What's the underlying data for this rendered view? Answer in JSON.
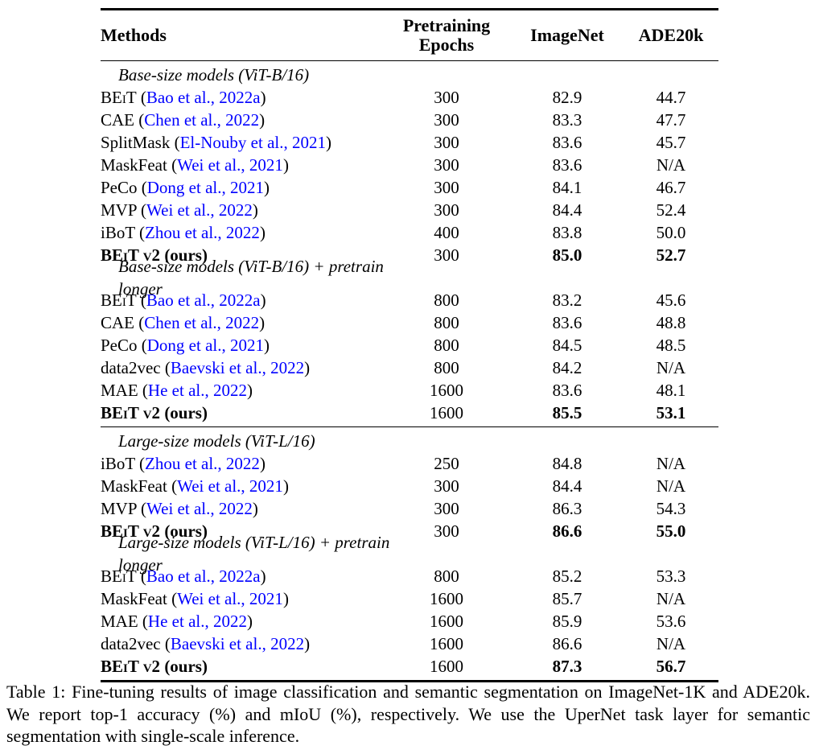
{
  "colors": {
    "citation": "#0000FF",
    "text": "#000000",
    "background": "#FFFFFF"
  },
  "punctuation": {
    "paren_open": "(",
    "paren_close": ")"
  },
  "table": {
    "columns": [
      {
        "label": "Methods"
      },
      {
        "label": "Pretraining Epochs"
      },
      {
        "label": "ImageNet"
      },
      {
        "label": "ADE20k"
      }
    ],
    "blocks": [
      {
        "groups": [
          {
            "heading": "Base-size models (ViT-B/16)",
            "rows": [
              {
                "method": "BEiT",
                "smallcaps": true,
                "cite": "Bao et al., 2022a",
                "epochs": "300",
                "imagenet": "82.9",
                "ade20k": "44.7"
              },
              {
                "method": "CAE",
                "cite": "Chen et al., 2022",
                "epochs": "300",
                "imagenet": "83.3",
                "ade20k": "47.7"
              },
              {
                "method": "SplitMask",
                "cite": "El-Nouby et al., 2021",
                "epochs": "300",
                "imagenet": "83.6",
                "ade20k": "45.7"
              },
              {
                "method": "MaskFeat",
                "cite": "Wei et al., 2021",
                "epochs": "300",
                "imagenet": "83.6",
                "ade20k": "N/A"
              },
              {
                "method": "PeCo",
                "cite": "Dong et al., 2021",
                "epochs": "300",
                "imagenet": "84.1",
                "ade20k": "46.7"
              },
              {
                "method": "MVP",
                "cite": "Wei et al., 2022",
                "epochs": "300",
                "imagenet": "84.4",
                "ade20k": "52.4"
              },
              {
                "method": "iBoT",
                "cite": "Zhou et al., 2022",
                "epochs": "400",
                "imagenet": "83.8",
                "ade20k": "50.0"
              },
              {
                "method": "BEiT v2",
                "smallcaps": true,
                "suffix": "(ours)",
                "bold": true,
                "epochs": "300",
                "imagenet": "85.0",
                "ade20k": "52.7"
              }
            ]
          },
          {
            "heading": "Base-size models (ViT-B/16) + pretrain longer",
            "rows": [
              {
                "method": "BEiT",
                "smallcaps": true,
                "cite": "Bao et al., 2022a",
                "epochs": "800",
                "imagenet": "83.2",
                "ade20k": "45.6"
              },
              {
                "method": "CAE",
                "cite": "Chen et al., 2022",
                "epochs": "800",
                "imagenet": "83.6",
                "ade20k": "48.8"
              },
              {
                "method": "PeCo",
                "cite": "Dong et al., 2021",
                "epochs": "800",
                "imagenet": "84.5",
                "ade20k": "48.5"
              },
              {
                "method": "data2vec",
                "cite": "Baevski et al., 2022",
                "epochs": "800",
                "imagenet": "84.2",
                "ade20k": "N/A"
              },
              {
                "method": "MAE",
                "cite": "He et al., 2022",
                "epochs": "1600",
                "imagenet": "83.6",
                "ade20k": "48.1"
              },
              {
                "method": "BEiT v2",
                "smallcaps": true,
                "suffix": "(ours)",
                "bold": true,
                "epochs": "1600",
                "imagenet": "85.5",
                "ade20k": "53.1"
              }
            ]
          }
        ]
      },
      {
        "groups": [
          {
            "heading": "Large-size models (ViT-L/16)",
            "rows": [
              {
                "method": "iBoT",
                "cite": "Zhou et al., 2022",
                "epochs": "250",
                "imagenet": "84.8",
                "ade20k": "N/A"
              },
              {
                "method": "MaskFeat",
                "cite": "Wei et al., 2021",
                "epochs": "300",
                "imagenet": "84.4",
                "ade20k": "N/A"
              },
              {
                "method": "MVP",
                "cite": "Wei et al., 2022",
                "epochs": "300",
                "imagenet": "86.3",
                "ade20k": "54.3"
              },
              {
                "method": "BEiT v2",
                "smallcaps": true,
                "suffix": "(ours)",
                "bold": true,
                "epochs": "300",
                "imagenet": "86.6",
                "ade20k": "55.0"
              }
            ]
          },
          {
            "heading": "Large-size models (ViT-L/16) + pretrain longer",
            "rows": [
              {
                "method": "BEiT",
                "smallcaps": true,
                "cite": "Bao et al., 2022a",
                "epochs": "800",
                "imagenet": "85.2",
                "ade20k": "53.3"
              },
              {
                "method": "MaskFeat",
                "cite": "Wei et al., 2021",
                "epochs": "1600",
                "imagenet": "85.7",
                "ade20k": "N/A"
              },
              {
                "method": "MAE",
                "cite": "He et al., 2022",
                "epochs": "1600",
                "imagenet": "85.9",
                "ade20k": "53.6"
              },
              {
                "method": "data2vec",
                "cite": "Baevski et al., 2022",
                "epochs": "1600",
                "imagenet": "86.6",
                "ade20k": "N/A"
              },
              {
                "method": "BEiT v2",
                "smallcaps": true,
                "suffix": "(ours)",
                "bold": true,
                "epochs": "1600",
                "imagenet": "87.3",
                "ade20k": "56.7"
              }
            ]
          }
        ]
      }
    ]
  },
  "caption": {
    "text": "Table 1: Fine-tuning results of image classification and semantic segmentation on ImageNet-1K and ADE20k. We report top-1 accuracy (%) and mIoU (%), respectively. We use the UperNet task layer for semantic segmentation with single-scale inference."
  }
}
